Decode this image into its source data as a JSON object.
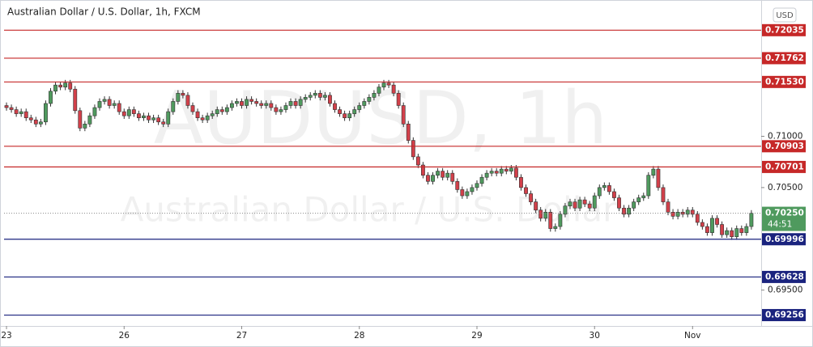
{
  "chart_data": {
    "type": "candlestick",
    "title": "Australian Dollar / U.S. Dollar, 1h, FXCM",
    "watermark": [
      "AUDUSD, 1h",
      "Australian Dollar / U.S. Dollar"
    ],
    "currency": "USD",
    "up_color": "#4f9a5e",
    "down_color": "#d2404a",
    "ylim": [
      0.6915,
      0.7229
    ],
    "yticks": [
      {
        "value": 0.71,
        "label": "0.71000"
      },
      {
        "value": 0.705,
        "label": "0.70500"
      },
      {
        "value": 0.695,
        "label": "0.69500"
      }
    ],
    "xlim": [
      -0.5,
      154
    ],
    "xticks": [
      {
        "value": 0,
        "label": "23"
      },
      {
        "value": 24,
        "label": "26"
      },
      {
        "value": 48,
        "label": "27"
      },
      {
        "value": 72,
        "label": "28"
      },
      {
        "value": 96,
        "label": "29"
      },
      {
        "value": 120,
        "label": "30"
      },
      {
        "value": 140,
        "label": "Nov"
      }
    ],
    "levels": [
      {
        "value": 0.72035,
        "color": "#c62828"
      },
      {
        "value": 0.71762,
        "color": "#c62828"
      },
      {
        "value": 0.7153,
        "label": "0.71530",
        "color": "#c62828"
      },
      {
        "value": 0.70903,
        "color": "#c62828"
      },
      {
        "value": 0.70701,
        "color": "#c62828"
      },
      {
        "value": 0.69996,
        "color": "#1a237e"
      },
      {
        "value": 0.69628,
        "color": "#1a237e"
      },
      {
        "value": 0.69256,
        "color": "#1a237e"
      }
    ],
    "last_price": {
      "value": 0.7025,
      "label": "0.70250",
      "color": "#4f9a5e"
    },
    "countdown": "44:51",
    "ohlc": [
      [
        0.713,
        0.7133,
        0.7125,
        0.7128
      ],
      [
        0.7128,
        0.7131,
        0.7123,
        0.7126
      ],
      [
        0.7126,
        0.7129,
        0.7119,
        0.7122
      ],
      [
        0.7122,
        0.7127,
        0.7119,
        0.7124
      ],
      [
        0.7124,
        0.7127,
        0.7115,
        0.7118
      ],
      [
        0.7118,
        0.7121,
        0.7113,
        0.7116
      ],
      [
        0.7116,
        0.7119,
        0.7109,
        0.7112
      ],
      [
        0.7112,
        0.7117,
        0.7109,
        0.7114
      ],
      [
        0.7114,
        0.7135,
        0.7111,
        0.7132
      ],
      [
        0.7132,
        0.7147,
        0.7129,
        0.7144
      ],
      [
        0.7144,
        0.7153,
        0.7141,
        0.715
      ],
      [
        0.715,
        0.7153,
        0.7145,
        0.7148
      ],
      [
        0.7148,
        0.7155,
        0.7145,
        0.7152
      ],
      [
        0.7152,
        0.7155,
        0.7143,
        0.7146
      ],
      [
        0.7146,
        0.7149,
        0.7122,
        0.7125
      ],
      [
        0.7125,
        0.7128,
        0.7105,
        0.7108
      ],
      [
        0.7108,
        0.7115,
        0.7105,
        0.7112
      ],
      [
        0.7112,
        0.7123,
        0.7109,
        0.712
      ],
      [
        0.712,
        0.7131,
        0.7117,
        0.7128
      ],
      [
        0.7128,
        0.7137,
        0.7125,
        0.7134
      ],
      [
        0.7134,
        0.7139,
        0.7131,
        0.7136
      ],
      [
        0.7136,
        0.7139,
        0.7127,
        0.713
      ],
      [
        0.713,
        0.7135,
        0.7127,
        0.7132
      ],
      [
        0.7132,
        0.7135,
        0.7121,
        0.7124
      ],
      [
        0.7124,
        0.7127,
        0.7117,
        0.712
      ],
      [
        0.712,
        0.7129,
        0.7117,
        0.7126
      ],
      [
        0.7126,
        0.7129,
        0.7119,
        0.7122
      ],
      [
        0.7122,
        0.7125,
        0.7115,
        0.7118
      ],
      [
        0.7118,
        0.7123,
        0.7115,
        0.712
      ],
      [
        0.712,
        0.7123,
        0.7113,
        0.7116
      ],
      [
        0.7116,
        0.7121,
        0.7113,
        0.7118
      ],
      [
        0.7118,
        0.7121,
        0.7111,
        0.7114
      ],
      [
        0.7114,
        0.7117,
        0.7109,
        0.7112
      ],
      [
        0.7112,
        0.7127,
        0.7109,
        0.7124
      ],
      [
        0.7124,
        0.7137,
        0.7121,
        0.7134
      ],
      [
        0.7134,
        0.7145,
        0.7131,
        0.7142
      ],
      [
        0.7142,
        0.7145,
        0.7137,
        0.714
      ],
      [
        0.714,
        0.7143,
        0.7127,
        0.713
      ],
      [
        0.713,
        0.7133,
        0.7121,
        0.7124
      ],
      [
        0.7124,
        0.7127,
        0.7115,
        0.7118
      ],
      [
        0.7118,
        0.7121,
        0.7113,
        0.7116
      ],
      [
        0.7116,
        0.7123,
        0.7113,
        0.712
      ],
      [
        0.712,
        0.7125,
        0.7117,
        0.7122
      ],
      [
        0.7122,
        0.7129,
        0.7119,
        0.7126
      ],
      [
        0.7126,
        0.7129,
        0.7121,
        0.7124
      ],
      [
        0.7124,
        0.7131,
        0.7121,
        0.7128
      ],
      [
        0.7128,
        0.7135,
        0.7125,
        0.7132
      ],
      [
        0.7132,
        0.7137,
        0.7129,
        0.7134
      ],
      [
        0.7134,
        0.7137,
        0.7127,
        0.713
      ],
      [
        0.713,
        0.7139,
        0.7127,
        0.7136
      ],
      [
        0.7136,
        0.7139,
        0.7131,
        0.7134
      ],
      [
        0.7134,
        0.7137,
        0.7129,
        0.7132
      ],
      [
        0.7132,
        0.7135,
        0.7127,
        0.713
      ],
      [
        0.713,
        0.7135,
        0.7127,
        0.7132
      ],
      [
        0.7132,
        0.7135,
        0.7125,
        0.7128
      ],
      [
        0.7128,
        0.7131,
        0.7121,
        0.7124
      ],
      [
        0.7124,
        0.7129,
        0.7121,
        0.7126
      ],
      [
        0.7126,
        0.7133,
        0.7123,
        0.713
      ],
      [
        0.713,
        0.7137,
        0.7127,
        0.7134
      ],
      [
        0.7134,
        0.7137,
        0.7127,
        0.713
      ],
      [
        0.713,
        0.7139,
        0.7127,
        0.7136
      ],
      [
        0.7136,
        0.7141,
        0.7133,
        0.7138
      ],
      [
        0.7138,
        0.7143,
        0.7135,
        0.714
      ],
      [
        0.714,
        0.7145,
        0.7137,
        0.7142
      ],
      [
        0.7142,
        0.7145,
        0.7135,
        0.7138
      ],
      [
        0.7138,
        0.7143,
        0.7135,
        0.714
      ],
      [
        0.714,
        0.7143,
        0.7129,
        0.7132
      ],
      [
        0.7132,
        0.7135,
        0.7123,
        0.7126
      ],
      [
        0.7126,
        0.7129,
        0.7119,
        0.7122
      ],
      [
        0.7122,
        0.7125,
        0.7115,
        0.7118
      ],
      [
        0.7118,
        0.7125,
        0.7115,
        0.7122
      ],
      [
        0.7122,
        0.7129,
        0.7119,
        0.7126
      ],
      [
        0.7126,
        0.7133,
        0.7123,
        0.713
      ],
      [
        0.713,
        0.7137,
        0.7127,
        0.7134
      ],
      [
        0.7134,
        0.7141,
        0.7131,
        0.7138
      ],
      [
        0.7138,
        0.7145,
        0.7135,
        0.7142
      ],
      [
        0.7142,
        0.7151,
        0.7139,
        0.7148
      ],
      [
        0.7148,
        0.7155,
        0.7145,
        0.7152
      ],
      [
        0.7152,
        0.7155,
        0.7147,
        0.715
      ],
      [
        0.715,
        0.7153,
        0.7139,
        0.7142
      ],
      [
        0.7142,
        0.7145,
        0.7127,
        0.713
      ],
      [
        0.713,
        0.7133,
        0.7109,
        0.7112
      ],
      [
        0.7112,
        0.7115,
        0.7093,
        0.7096
      ],
      [
        0.7096,
        0.7099,
        0.7077,
        0.708
      ],
      [
        0.708,
        0.7083,
        0.7069,
        0.7072
      ],
      [
        0.7072,
        0.7075,
        0.7059,
        0.7062
      ],
      [
        0.7062,
        0.7065,
        0.7053,
        0.7056
      ],
      [
        0.7056,
        0.7065,
        0.7053,
        0.7062
      ],
      [
        0.7062,
        0.7069,
        0.7059,
        0.7066
      ],
      [
        0.7066,
        0.7069,
        0.7057,
        0.706
      ],
      [
        0.706,
        0.7067,
        0.7057,
        0.7064
      ],
      [
        0.7064,
        0.7067,
        0.7053,
        0.7056
      ],
      [
        0.7056,
        0.7059,
        0.7045,
        0.7048
      ],
      [
        0.7048,
        0.7051,
        0.7039,
        0.7042
      ],
      [
        0.7042,
        0.7049,
        0.7039,
        0.7046
      ],
      [
        0.7046,
        0.7053,
        0.7043,
        0.705
      ],
      [
        0.705,
        0.7057,
        0.7047,
        0.7054
      ],
      [
        0.7054,
        0.7063,
        0.7051,
        0.706
      ],
      [
        0.706,
        0.7067,
        0.7057,
        0.7064
      ],
      [
        0.7064,
        0.7069,
        0.7061,
        0.7066
      ],
      [
        0.7066,
        0.7069,
        0.7061,
        0.7064
      ],
      [
        0.7064,
        0.7071,
        0.7061,
        0.7068
      ],
      [
        0.7068,
        0.7071,
        0.7063,
        0.7066
      ],
      [
        0.7066,
        0.7072,
        0.7063,
        0.7069
      ],
      [
        0.7069,
        0.7072,
        0.7057,
        0.706
      ],
      [
        0.706,
        0.7063,
        0.7047,
        0.705
      ],
      [
        0.705,
        0.7053,
        0.7041,
        0.7044
      ],
      [
        0.7044,
        0.7047,
        0.7033,
        0.7036
      ],
      [
        0.7036,
        0.7039,
        0.7025,
        0.7028
      ],
      [
        0.7028,
        0.7031,
        0.7017,
        0.702
      ],
      [
        0.702,
        0.7029,
        0.7017,
        0.7026
      ],
      [
        0.7026,
        0.7029,
        0.7007,
        0.701
      ],
      [
        0.701,
        0.7015,
        0.7007,
        0.7012
      ],
      [
        0.7012,
        0.7027,
        0.7009,
        0.7024
      ],
      [
        0.7024,
        0.7035,
        0.7021,
        0.7032
      ],
      [
        0.7032,
        0.7039,
        0.7029,
        0.7036
      ],
      [
        0.7036,
        0.7039,
        0.7027,
        0.703
      ],
      [
        0.703,
        0.7041,
        0.7027,
        0.7038
      ],
      [
        0.7038,
        0.7041,
        0.7031,
        0.7034
      ],
      [
        0.7034,
        0.7037,
        0.7027,
        0.703
      ],
      [
        0.703,
        0.7045,
        0.7027,
        0.7042
      ],
      [
        0.7042,
        0.7053,
        0.7039,
        0.705
      ],
      [
        0.705,
        0.7055,
        0.7047,
        0.7052
      ],
      [
        0.7052,
        0.7055,
        0.7043,
        0.7046
      ],
      [
        0.7046,
        0.7049,
        0.7037,
        0.704
      ],
      [
        0.704,
        0.7043,
        0.7027,
        0.703
      ],
      [
        0.703,
        0.7033,
        0.7021,
        0.7024
      ],
      [
        0.7024,
        0.7033,
        0.7021,
        0.703
      ],
      [
        0.703,
        0.7039,
        0.7027,
        0.7036
      ],
      [
        0.7036,
        0.7043,
        0.7033,
        0.704
      ],
      [
        0.704,
        0.7045,
        0.7037,
        0.7042
      ],
      [
        0.7042,
        0.7065,
        0.7039,
        0.7062
      ],
      [
        0.7062,
        0.7071,
        0.7059,
        0.7068
      ],
      [
        0.7068,
        0.7071,
        0.7047,
        0.705
      ],
      [
        0.705,
        0.7053,
        0.7033,
        0.7036
      ],
      [
        0.7036,
        0.7039,
        0.7023,
        0.7026
      ],
      [
        0.7026,
        0.7029,
        0.7019,
        0.7022
      ],
      [
        0.7022,
        0.7029,
        0.7019,
        0.7026
      ],
      [
        0.7026,
        0.7029,
        0.7021,
        0.7024
      ],
      [
        0.7024,
        0.7031,
        0.7021,
        0.7028
      ],
      [
        0.7028,
        0.7031,
        0.7021,
        0.7024
      ],
      [
        0.7024,
        0.7027,
        0.7013,
        0.7016
      ],
      [
        0.7016,
        0.7019,
        0.7009,
        0.7012
      ],
      [
        0.7012,
        0.7015,
        0.7003,
        0.7006
      ],
      [
        0.7006,
        0.7023,
        0.7003,
        0.702
      ],
      [
        0.702,
        0.7023,
        0.7011,
        0.7014
      ],
      [
        0.7014,
        0.7017,
        0.7001,
        0.7004
      ],
      [
        0.7004,
        0.7011,
        0.7001,
        0.7008
      ],
      [
        0.7008,
        0.7011,
        0.6999,
        0.7002
      ],
      [
        0.7002,
        0.7013,
        0.6999,
        0.701
      ],
      [
        0.701,
        0.7013,
        0.7003,
        0.7006
      ],
      [
        0.7006,
        0.7015,
        0.7003,
        0.7012
      ],
      [
        0.7012,
        0.7028,
        0.7009,
        0.7025
      ]
    ]
  }
}
